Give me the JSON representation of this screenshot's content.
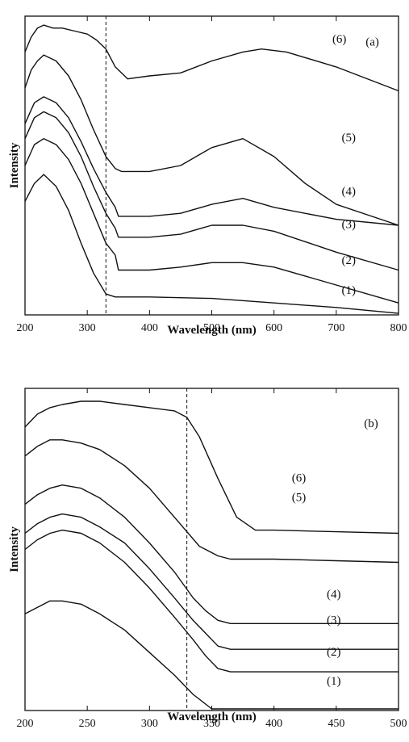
{
  "chart_data": [
    {
      "type": "line",
      "panel_label": "(a)",
      "xlabel": "Wavelength (nm)",
      "ylabel": "Intensity",
      "xlim": [
        200,
        800
      ],
      "xticks": [
        200,
        300,
        400,
        500,
        600,
        700,
        800
      ],
      "ylim": [
        0,
        100
      ],
      "y_ticks_shown": false,
      "grid": false,
      "reference_line_x": 330,
      "series": [
        {
          "name": "(1)",
          "label_at": [
            720,
            6
          ],
          "x": [
            200,
            215,
            230,
            250,
            270,
            290,
            310,
            330,
            345,
            360,
            400,
            500,
            600,
            700,
            800
          ],
          "y": [
            38,
            44,
            47,
            43,
            35,
            24,
            14,
            7,
            6,
            6,
            6,
            5.5,
            4,
            2.5,
            0.5
          ]
        },
        {
          "name": "(2)",
          "label_at": [
            720,
            16
          ],
          "x": [
            200,
            215,
            230,
            250,
            270,
            290,
            310,
            330,
            345,
            350,
            360,
            400,
            450,
            500,
            550,
            600,
            700,
            800
          ],
          "y": [
            50,
            57,
            59,
            57,
            52,
            44,
            34,
            24,
            20,
            15,
            15,
            15,
            16,
            17.5,
            17.5,
            16,
            10,
            4
          ]
        },
        {
          "name": "(3)",
          "label_at": [
            720,
            28
          ],
          "x": [
            200,
            215,
            230,
            250,
            270,
            290,
            310,
            330,
            345,
            350,
            360,
            400,
            450,
            500,
            550,
            600,
            700,
            800
          ],
          "y": [
            59,
            66,
            68,
            66,
            61,
            53,
            43,
            34,
            29,
            26,
            26,
            26,
            27,
            30,
            30,
            28,
            21,
            15
          ]
        },
        {
          "name": "(4)",
          "label_at": [
            720,
            39
          ],
          "x": [
            200,
            215,
            230,
            250,
            270,
            290,
            310,
            330,
            345,
            350,
            360,
            400,
            450,
            500,
            550,
            600,
            700,
            800
          ],
          "y": [
            64,
            71,
            73,
            71,
            66,
            58,
            49,
            41,
            36,
            33,
            33,
            33,
            34,
            37,
            39,
            36,
            32,
            30
          ]
        },
        {
          "name": "(5)",
          "label_at": [
            720,
            57
          ],
          "x": [
            200,
            210,
            220,
            230,
            250,
            270,
            290,
            310,
            330,
            345,
            355,
            370,
            400,
            450,
            500,
            550,
            600,
            650,
            700,
            800
          ],
          "y": [
            76,
            82,
            85,
            87,
            85,
            80,
            72,
            62,
            53,
            49,
            48,
            48,
            48,
            50,
            56,
            59,
            53,
            44,
            37,
            30
          ]
        },
        {
          "name": "(6)",
          "label_at": [
            705,
            90
          ],
          "x": [
            200,
            210,
            220,
            230,
            245,
            260,
            280,
            300,
            315,
            330,
            345,
            365,
            400,
            450,
            500,
            550,
            580,
            620,
            700,
            800
          ],
          "y": [
            88,
            93,
            96,
            97,
            96,
            96,
            95,
            94,
            92,
            89,
            83,
            79,
            80,
            81,
            85,
            88,
            89,
            88,
            83,
            75
          ]
        }
      ]
    },
    {
      "type": "line",
      "panel_label": "(b)",
      "xlabel": "Wavelength (nm)",
      "ylabel": "Intensity",
      "xlim": [
        200,
        500
      ],
      "xticks": [
        200,
        250,
        300,
        350,
        400,
        450,
        500
      ],
      "ylim": [
        0,
        100
      ],
      "y_ticks_shown": false,
      "grid": false,
      "reference_line_x": 330,
      "series": [
        {
          "name": "(1)",
          "label_at": [
            448,
            7
          ],
          "x": [
            200,
            210,
            220,
            230,
            245,
            260,
            280,
            300,
            320,
            335,
            345,
            350,
            360,
            400,
            450,
            500
          ],
          "y": [
            30,
            32,
            34,
            34,
            33,
            30,
            25,
            18,
            11,
            5,
            2,
            0.5,
            0.5,
            0.5,
            0.5,
            0.5
          ]
        },
        {
          "name": "(2)",
          "label_at": [
            448,
            16
          ],
          "x": [
            200,
            210,
            220,
            230,
            245,
            260,
            280,
            300,
            320,
            335,
            345,
            355,
            365,
            400,
            450,
            500
          ],
          "y": [
            50,
            53,
            55,
            56,
            55,
            52,
            46,
            38,
            29,
            22,
            17,
            13,
            12,
            12,
            12,
            12
          ]
        },
        {
          "name": "(3)",
          "label_at": [
            448,
            26
          ],
          "x": [
            200,
            210,
            220,
            230,
            245,
            260,
            280,
            300,
            320,
            335,
            345,
            355,
            365,
            400,
            450,
            500
          ],
          "y": [
            55,
            58,
            60,
            61,
            60,
            57,
            52,
            44,
            35,
            28,
            24,
            20,
            19,
            19,
            19,
            19
          ]
        },
        {
          "name": "(4)",
          "label_at": [
            448,
            34
          ],
          "x": [
            200,
            210,
            220,
            230,
            245,
            260,
            280,
            300,
            320,
            335,
            345,
            355,
            365,
            400,
            450,
            500
          ],
          "y": [
            64,
            67,
            69,
            70,
            69,
            66,
            60,
            52,
            43,
            35,
            31,
            28,
            27,
            27,
            27,
            27
          ]
        },
        {
          "name": "(5)",
          "label_at": [
            420,
            64
          ],
          "x": [
            200,
            210,
            220,
            230,
            245,
            260,
            280,
            300,
            320,
            340,
            355,
            365,
            380,
            400,
            450,
            500
          ],
          "y": [
            79,
            82,
            84,
            84,
            83,
            81,
            76,
            69,
            60,
            51,
            48,
            47,
            47,
            47,
            46.5,
            46
          ]
        },
        {
          "name": "(6)",
          "label_at": [
            420,
            70
          ],
          "x": [
            200,
            210,
            220,
            230,
            245,
            260,
            280,
            300,
            320,
            330,
            340,
            355,
            370,
            385,
            400,
            450,
            500
          ],
          "y": [
            88,
            92,
            94,
            95,
            96,
            96,
            95,
            94,
            93,
            91,
            85,
            72,
            60,
            56,
            56,
            55.5,
            55
          ]
        }
      ]
    }
  ]
}
